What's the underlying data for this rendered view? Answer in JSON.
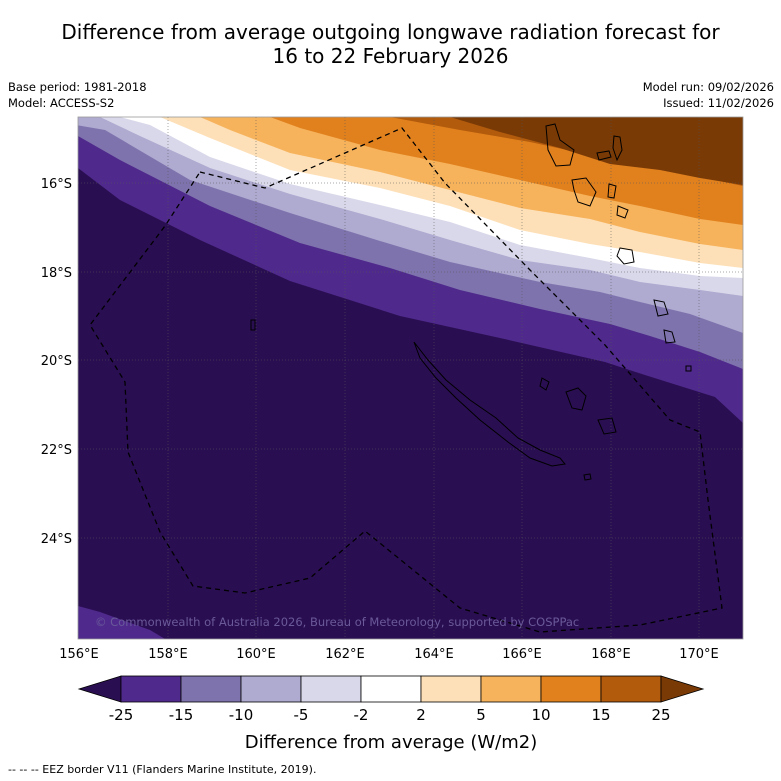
{
  "title": {
    "line1": "Difference from average outgoing longwave radiation forecast for",
    "line2": "16 to 22 February 2026"
  },
  "meta": {
    "base_period": "Base period: 1981-2018",
    "model": "Model: ACCESS-S2",
    "model_run": "Model run: 09/02/2026",
    "issued": "Issued: 11/02/2026"
  },
  "map": {
    "lon_labels": [
      "156°E",
      "158°E",
      "160°E",
      "162°E",
      "164°E",
      "166°E",
      "168°E",
      "170°E"
    ],
    "lon_values": [
      156,
      158,
      160,
      162,
      164,
      166,
      168,
      170
    ],
    "lat_labels": [
      "16°S",
      "18°S",
      "20°S",
      "22°S",
      "24°S"
    ],
    "lat_values": [
      -16,
      -18,
      -20,
      -22,
      -24
    ],
    "lon_range": [
      156,
      171
    ],
    "lat_range": [
      -26.7,
      -14.9
    ],
    "copyright": "© Commonwealth of Australia 2026, Bureau of Meteorology, supported by COSPPac"
  },
  "legend": {
    "colors": [
      "#2a0e52",
      "#4f2a8c",
      "#7f73ad",
      "#aeaad0",
      "#d9d8ea",
      "#ffffff",
      "#fde0b8",
      "#f7b35c",
      "#e1811e",
      "#b25b0c",
      "#7a3a06"
    ],
    "tick_labels": [
      "-25",
      "-15",
      "-10",
      "-5",
      "-2",
      "2",
      "5",
      "10",
      "15",
      "25"
    ],
    "title": "Difference from average (W/m2)"
  },
  "footer": {
    "eez_note": "--  --  -- EEZ border V11 (Flanders Marine Institute, 2019)."
  }
}
